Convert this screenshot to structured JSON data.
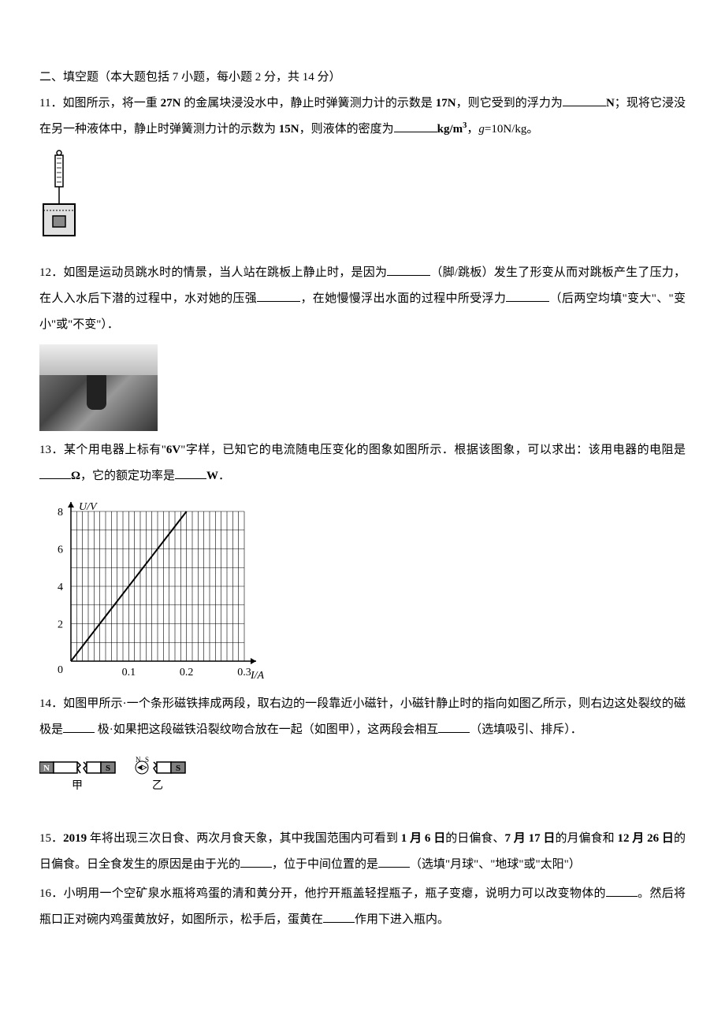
{
  "section": {
    "title": "二、填空题（本大题包括 7 小题，每小题 2 分，共 14 分）"
  },
  "q11": {
    "prefix": "11．如图所示，将一重 ",
    "weight": "27N",
    "text1": " 的金属块浸没水中，静止时弹簧测力计的示数是 ",
    "reading1": "17N",
    "text2": "，则它受到的浮力为",
    "unit1": "N",
    "text3": "；现将它浸没在另一种液体中，静止时弹簧测力计的示数为 ",
    "reading2": "15N",
    "text4": "，则液体的密度为",
    "unit2": "kg/m",
    "sup": "3",
    "text5": "，",
    "g_label": "g",
    "g_value": "=10N/kg。"
  },
  "q12": {
    "prefix": "12．如图是运动员跳水时的情景，当人站在跳板上静止时，是因为",
    "text1": "（脚/跳板）发生了形变从而对跳板产生了压力，在人入水后下潜的过程中，水对她的压强",
    "text2": "，在她慢慢浮出水面的过程中所受浮力",
    "text3": "（后两空均填\"变大\"、\"变小\"或\"不变\"）．"
  },
  "q13": {
    "prefix": "13．某个用电器上标有\"",
    "voltage": "6V",
    "text1": "\"字样，已知它的电流随电压变化的图象如图所示．根据该图象，可以求出：该用电器的电阻是",
    "unit1": "Ω",
    "text2": "，它的额定功率是",
    "unit2": "W",
    "text3": "．"
  },
  "graph": {
    "ylabel": "U/V",
    "xlabel": "I/A",
    "ymax": 8,
    "yticks": [
      0,
      2,
      4,
      6,
      8
    ],
    "xticks": [
      "0",
      "0.1",
      "0.2",
      "0.3"
    ],
    "line_start": [
      0,
      0
    ],
    "line_end": [
      0.2,
      8
    ],
    "bg_color": "#ffffff",
    "grid_color": "#000000",
    "axis_color": "#000000",
    "line_color": "#000000",
    "label_fontsize": 14
  },
  "q14": {
    "prefix": "14．如图甲所示·一个条形磁铁摔成两段，取右边的一段靠近小磁针，小磁针静止时的指向如图乙所示，则右边这处裂纹的磁极是",
    "text1": " 极·如果把这段磁铁沿裂纹吻合放在一起（如图甲），这两段会相互",
    "text2": "（选填吸引、排斥）．"
  },
  "magnet": {
    "n_label": "N",
    "s_label": "S",
    "jia_label": "甲",
    "yi_label": "乙",
    "n_color": "#808080",
    "s_color": "#ffffff"
  },
  "q15": {
    "prefix": "15．",
    "year": "2019",
    "text1": " 年将出现三次日食、两次月食天象，其中我国范围内可看到 ",
    "date1": "1 月 6 日",
    "text2": "的日偏食、",
    "date2": "7 月 17 日",
    "text3": "的月偏食和 ",
    "date3": "12 月 26 日",
    "text4": "的日偏食。日全食发生的原因是由于光的",
    "text5": "，位于中间位置的是",
    "text6": "（选填\"月球\"、\"地球\"或\"太阳\"）"
  },
  "q16": {
    "prefix": "16．小明用一个空矿泉水瓶将鸡蛋的清和黄分开，他拧开瓶盖轻捏瓶子，瓶子变瘪，说明力可以改变物体的",
    "text1": "。然后将瓶口正对碗内鸡蛋黄放好，如图所示，松手后，蛋黄在",
    "text2": "作用下进入瓶内。"
  }
}
